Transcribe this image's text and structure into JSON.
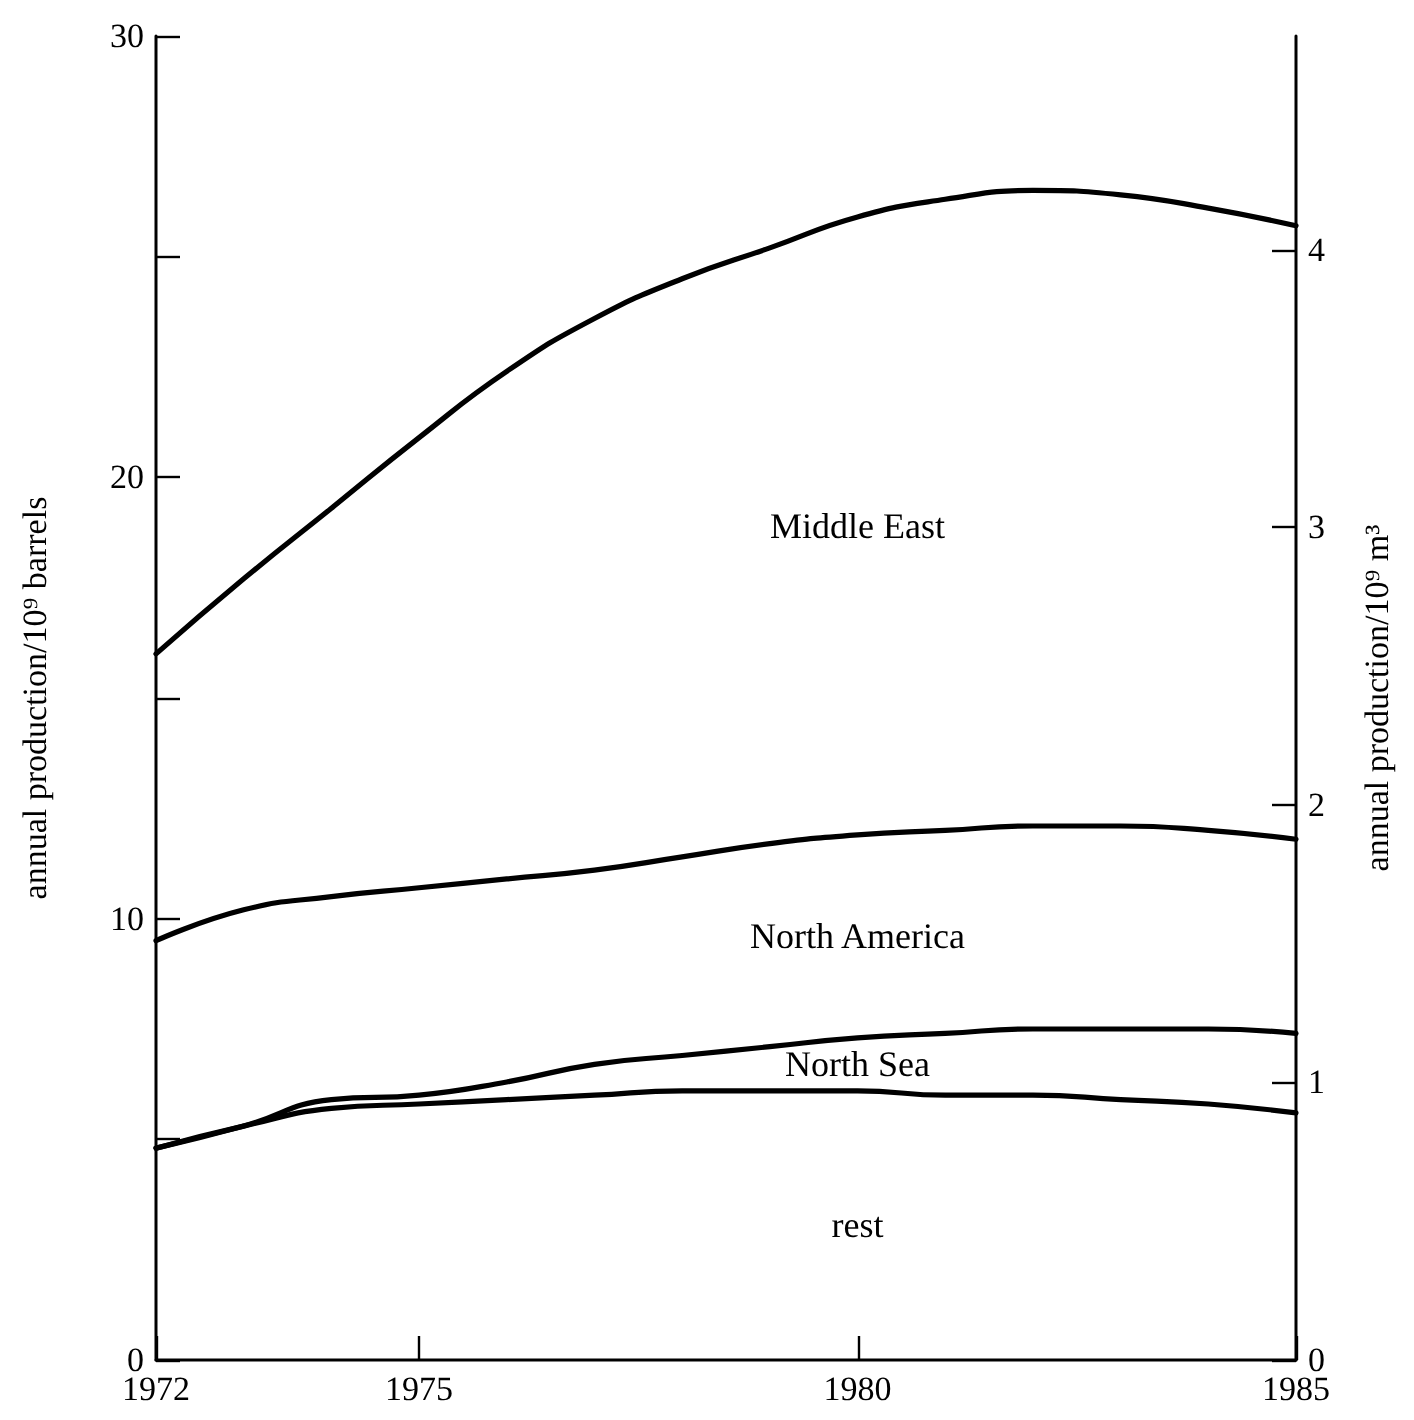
{
  "chart_data": {
    "type": "line",
    "ylabel": "annual production/10⁹ barrels",
    "y2label": "annual production/10⁹ m³",
    "x": [
      1972,
      1973,
      1974,
      1975,
      1976,
      1977,
      1978,
      1979,
      1980,
      1981,
      1982,
      1983,
      1984,
      1985
    ],
    "xlim": [
      1972,
      1985
    ],
    "xticks": [
      1972,
      1975,
      1980,
      1985
    ],
    "ylim": [
      0,
      30
    ],
    "yticks": [
      0,
      {
        "value": 5,
        "label": null
      },
      10,
      {
        "value": 15,
        "label": null
      },
      20,
      {
        "value": 25,
        "label": null
      },
      30
    ],
    "y2lim": [
      0,
      4.77
    ],
    "y2ticks": [
      0,
      1,
      2,
      3,
      4
    ],
    "grid": false,
    "marker": "none",
    "line_style": "solid",
    "annotations": [
      "Middle East",
      "North America",
      "North Sea",
      "rest"
    ],
    "series": [
      {
        "color": "#000000",
        "values": [
          4.8,
          5.3,
          5.7,
          5.8,
          5.9,
          6.0,
          6.1,
          6.1,
          6.1,
          6.0,
          6.0,
          5.9,
          5.8,
          5.6
        ]
      },
      {
        "color": "#000000",
        "values": [
          4.8,
          5.3,
          5.9,
          6.0,
          6.3,
          6.7,
          6.9,
          7.1,
          7.3,
          7.4,
          7.5,
          7.5,
          7.5,
          7.4
        ]
      },
      {
        "color": "#000000",
        "values": [
          9.5,
          10.2,
          10.5,
          10.7,
          10.9,
          11.1,
          11.4,
          11.7,
          11.9,
          12.0,
          12.1,
          12.1,
          12.0,
          11.8
        ]
      },
      {
        "color": "#000000",
        "values": [
          16.0,
          17.7,
          19.3,
          20.9,
          22.4,
          23.6,
          24.5,
          25.2,
          25.9,
          26.3,
          26.5,
          26.4,
          26.1,
          25.7
        ]
      }
    ]
  }
}
